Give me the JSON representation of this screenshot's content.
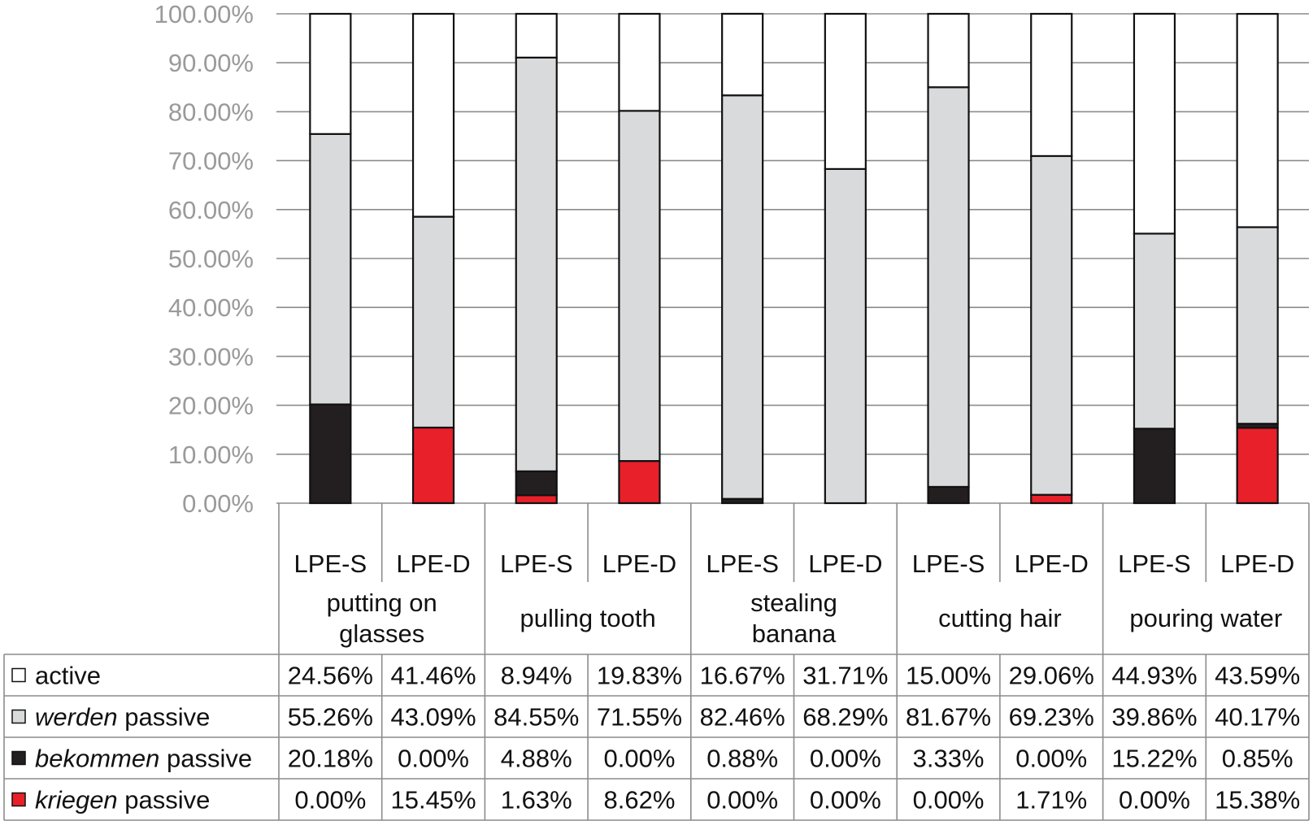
{
  "chart_data": {
    "type": "bar",
    "stacked": true,
    "title": "",
    "xlabel": "",
    "ylabel": "",
    "ylim": [
      0,
      100
    ],
    "y_ticks": [
      "0.00%",
      "10.00%",
      "20.00%",
      "30.00%",
      "40.00%",
      "50.00%",
      "60.00%",
      "70.00%",
      "80.00%",
      "90.00%",
      "100.00%"
    ],
    "grid": true,
    "groups": [
      "putting on glasses",
      "pulling tooth",
      "stealing banana",
      "cutting hair",
      "pouring water"
    ],
    "group_lines": [
      [
        "putting on",
        "glasses"
      ],
      [
        "pulling tooth"
      ],
      [
        "stealing",
        "banana"
      ],
      [
        "cutting hair"
      ],
      [
        "pouring water"
      ]
    ],
    "categories": [
      "LPE-S",
      "LPE-D",
      "LPE-S",
      "LPE-D",
      "LPE-S",
      "LPE-D",
      "LPE-S",
      "LPE-D",
      "LPE-S",
      "LPE-D"
    ],
    "series": [
      {
        "name": "kriegen passive",
        "label_italic": "kriegen",
        "label_rest": " passive",
        "color": "#e8202a",
        "values": [
          0.0,
          15.45,
          1.63,
          8.62,
          0.0,
          0.0,
          0.0,
          1.71,
          0.0,
          15.38
        ],
        "labels": [
          "0.00%",
          "15.45%",
          "1.63%",
          "8.62%",
          "0.00%",
          "0.00%",
          "0.00%",
          "1.71%",
          "0.00%",
          "15.38%"
        ]
      },
      {
        "name": "bekommen passive",
        "label_italic": "bekommen",
        "label_rest": " passive",
        "color": "#231f20",
        "values": [
          20.18,
          0.0,
          4.88,
          0.0,
          0.88,
          0.0,
          3.33,
          0.0,
          15.22,
          0.85
        ],
        "labels": [
          "20.18%",
          "0.00%",
          "4.88%",
          "0.00%",
          "0.88%",
          "0.00%",
          "3.33%",
          "0.00%",
          "15.22%",
          "0.85%"
        ]
      },
      {
        "name": "werden passive",
        "label_italic": "werden",
        "label_rest": " passive",
        "color": "#d9dadb",
        "values": [
          55.26,
          43.09,
          84.55,
          71.55,
          82.46,
          68.29,
          81.67,
          69.23,
          39.86,
          40.17
        ],
        "labels": [
          "55.26%",
          "43.09%",
          "84.55%",
          "71.55%",
          "82.46%",
          "68.29%",
          "81.67%",
          "69.23%",
          "39.86%",
          "40.17%"
        ]
      },
      {
        "name": "active",
        "label_italic": "",
        "label_rest": "active",
        "color": "#ffffff",
        "values": [
          24.56,
          41.46,
          8.94,
          19.83,
          16.67,
          31.71,
          15.0,
          29.06,
          44.93,
          43.59
        ],
        "labels": [
          "24.56%",
          "41.46%",
          "8.94%",
          "19.83%",
          "16.67%",
          "31.71%",
          "15.00%",
          "29.06%",
          "44.93%",
          "43.59%"
        ]
      }
    ],
    "table_row_order": [
      "active",
      "werden passive",
      "bekommen passive",
      "kriegen passive"
    ]
  }
}
